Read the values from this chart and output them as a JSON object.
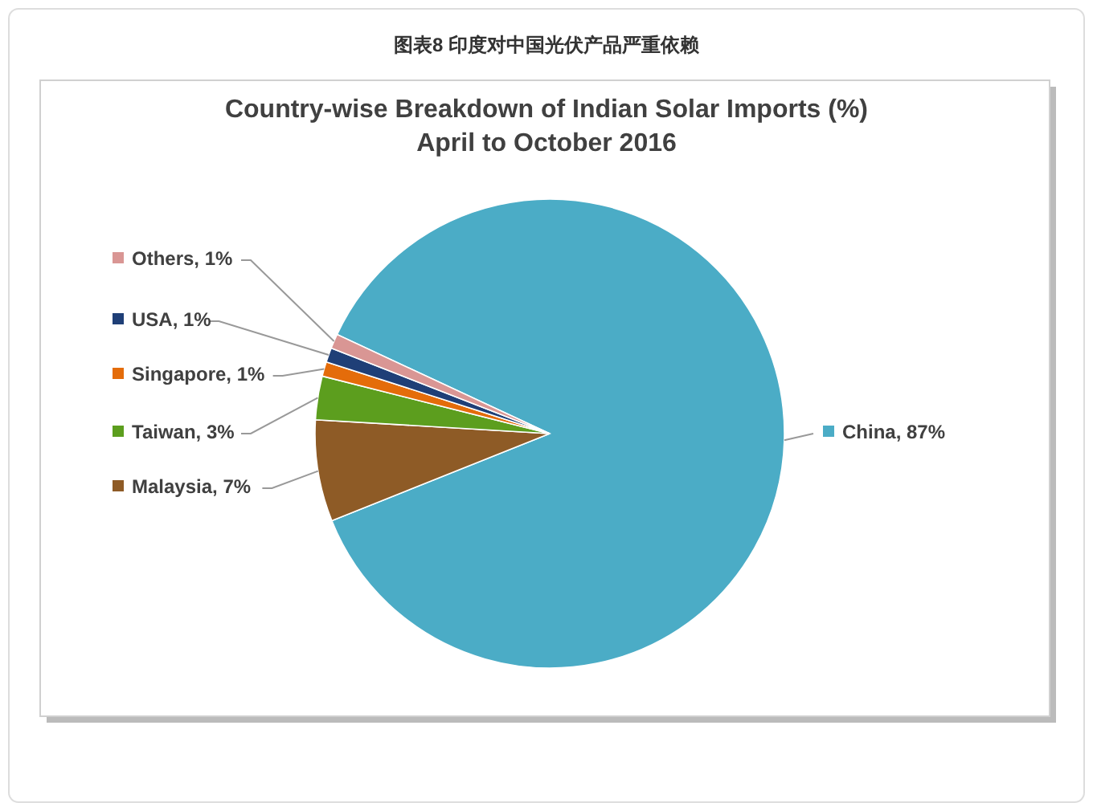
{
  "chart_data": {
    "type": "pie",
    "title": "Country-wise Breakdown of Indian Solar Imports (%)",
    "subtitle": "April to October 2016",
    "annotations": [
      "图表8 印度对中国光伏产品严重依赖"
    ],
    "categories": [
      "China",
      "Malaysia",
      "Taiwan",
      "Singapore",
      "USA",
      "Others"
    ],
    "values": [
      87,
      7,
      3,
      1,
      1,
      1
    ],
    "value_labels": [
      "87%",
      "7%",
      "3%",
      "1%",
      "1%",
      "1%"
    ],
    "colors": [
      "#4bacc6",
      "#8e5b26",
      "#5c9e1e",
      "#e46c0a",
      "#1f3f77",
      "#d99694"
    ],
    "legend": "left"
  }
}
